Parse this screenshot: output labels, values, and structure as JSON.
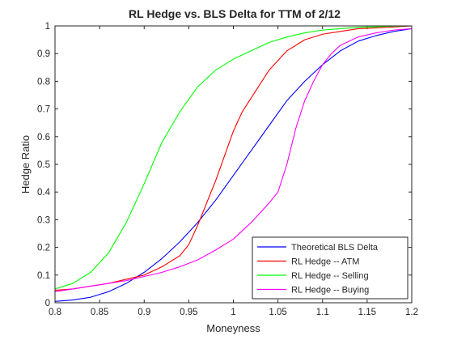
{
  "chart_data": {
    "type": "line",
    "title": "RL Hedge vs. BLS Delta for TTM of 2/12",
    "xlabel": "Moneyness",
    "ylabel": "Hedge Ratio",
    "xlim": [
      0.8,
      1.2
    ],
    "ylim": [
      0,
      1
    ],
    "x_ticks": [
      0.8,
      0.85,
      0.9,
      0.95,
      1,
      1.05,
      1.1,
      1.15,
      1.2
    ],
    "x_tick_labels": [
      "0.8",
      "0.85",
      "0.9",
      "0.95",
      "1",
      "1.05",
      "1.1",
      "1.15",
      "1.2"
    ],
    "y_ticks": [
      0,
      0.1,
      0.2,
      0.3,
      0.4,
      0.5,
      0.6,
      0.7,
      0.8,
      0.9,
      1
    ],
    "y_tick_labels": [
      "0",
      "0.1",
      "0.2",
      "0.3",
      "0.4",
      "0.5",
      "0.6",
      "0.7",
      "0.8",
      "0.9",
      "1"
    ],
    "grid": false,
    "legend_position": "bottom-right",
    "series": [
      {
        "name": "Theoretical BLS Delta",
        "color": "#0000ff",
        "x": [
          0.8,
          0.82,
          0.84,
          0.86,
          0.88,
          0.9,
          0.92,
          0.94,
          0.96,
          0.98,
          1.0,
          1.02,
          1.04,
          1.06,
          1.08,
          1.1,
          1.12,
          1.14,
          1.16,
          1.18,
          1.2
        ],
        "y": [
          0.005,
          0.01,
          0.02,
          0.04,
          0.07,
          0.11,
          0.16,
          0.22,
          0.29,
          0.37,
          0.46,
          0.55,
          0.64,
          0.73,
          0.8,
          0.86,
          0.91,
          0.945,
          0.965,
          0.98,
          0.99
        ]
      },
      {
        "name": "RL Hedge -- ATM",
        "color": "#ff0000",
        "x": [
          0.8,
          0.82,
          0.84,
          0.86,
          0.88,
          0.9,
          0.92,
          0.94,
          0.95,
          0.96,
          0.97,
          0.98,
          0.99,
          1.0,
          1.01,
          1.02,
          1.04,
          1.06,
          1.08,
          1.1,
          1.12,
          1.14,
          1.16,
          1.18,
          1.2
        ],
        "y": [
          0.045,
          0.05,
          0.06,
          0.07,
          0.085,
          0.1,
          0.13,
          0.17,
          0.21,
          0.28,
          0.36,
          0.44,
          0.53,
          0.62,
          0.69,
          0.74,
          0.84,
          0.91,
          0.95,
          0.97,
          0.98,
          0.99,
          0.993,
          0.996,
          1.0
        ]
      },
      {
        "name": "RL Hedge -- Selling",
        "color": "#00ff00",
        "x": [
          0.8,
          0.82,
          0.84,
          0.86,
          0.88,
          0.89,
          0.9,
          0.92,
          0.94,
          0.96,
          0.98,
          1.0,
          1.02,
          1.04,
          1.06,
          1.08,
          1.1,
          1.12,
          1.14,
          1.16,
          1.18,
          1.2
        ],
        "y": [
          0.05,
          0.07,
          0.11,
          0.18,
          0.29,
          0.36,
          0.43,
          0.58,
          0.69,
          0.78,
          0.84,
          0.88,
          0.91,
          0.94,
          0.96,
          0.975,
          0.985,
          0.99,
          0.995,
          0.997,
          0.999,
          1.0
        ]
      },
      {
        "name": "RL Hedge -- Buying",
        "color": "#ff00ff",
        "x": [
          0.8,
          0.82,
          0.84,
          0.86,
          0.88,
          0.9,
          0.92,
          0.94,
          0.96,
          0.98,
          1.0,
          1.02,
          1.04,
          1.05,
          1.06,
          1.07,
          1.08,
          1.09,
          1.1,
          1.11,
          1.12,
          1.14,
          1.16,
          1.18,
          1.2
        ],
        "y": [
          0.04,
          0.05,
          0.06,
          0.07,
          0.08,
          0.095,
          0.11,
          0.13,
          0.155,
          0.19,
          0.23,
          0.29,
          0.36,
          0.4,
          0.5,
          0.63,
          0.73,
          0.8,
          0.86,
          0.9,
          0.93,
          0.96,
          0.975,
          0.985,
          0.99
        ]
      }
    ]
  }
}
